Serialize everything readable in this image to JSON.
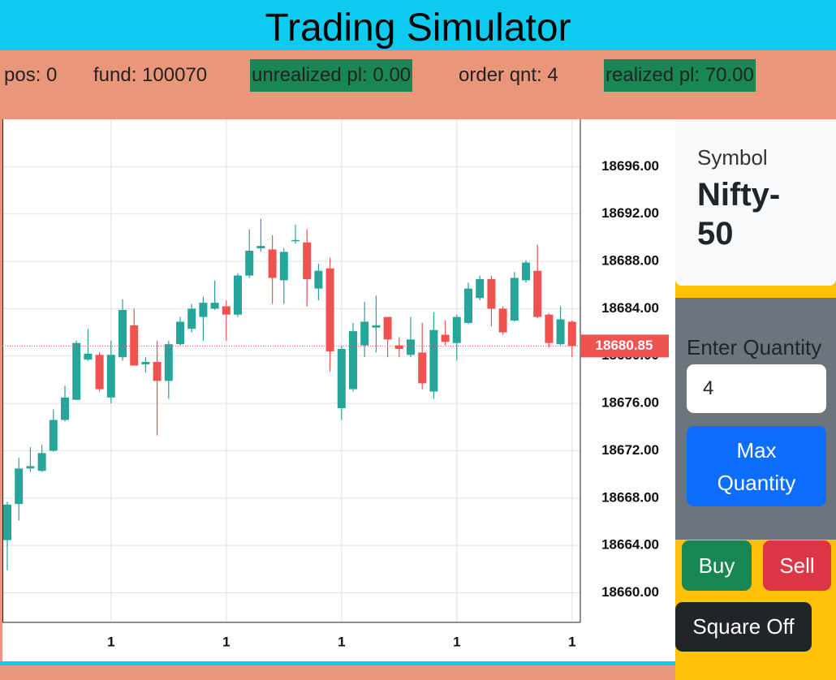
{
  "header": {
    "title": "Trading Simulator"
  },
  "stats": [
    {
      "text": "pos: 0",
      "highlight": false
    },
    {
      "text": "fund: 100070",
      "highlight": false
    },
    {
      "text": "unrealized pl: 0.00",
      "highlight": true
    },
    {
      "text": "order qnt: 4",
      "highlight": false
    },
    {
      "text": "realized pl: 70.00",
      "highlight": true
    }
  ],
  "symbol_card": {
    "label": "Symbol",
    "value": "Nifty-50"
  },
  "quantity": {
    "label": "Enter Quantity",
    "value": "4"
  },
  "buttons": {
    "max": "Max Quantity",
    "buy": "Buy",
    "sell": "Sell",
    "square_off": "Square Off"
  },
  "chart_data": {
    "type": "candlestick",
    "up_color": "#26a69a",
    "down_color": "#ef5350",
    "grid": true,
    "categories": [
      null,
      null,
      null,
      null,
      null,
      null,
      null,
      null,
      null,
      "1",
      null,
      null,
      null,
      null,
      null,
      null,
      null,
      null,
      null,
      "1",
      null,
      null,
      null,
      null,
      null,
      null,
      null,
      null,
      null,
      "1",
      null,
      null,
      null,
      null,
      null,
      null,
      null,
      null,
      null,
      "1",
      null,
      null,
      null,
      null,
      null,
      null,
      null,
      null,
      null,
      "1"
    ],
    "open": [
      18664.45,
      18667.5,
      18670.5,
      18670.3,
      18672.0,
      18674.6,
      18676.3,
      18679.7,
      18680.1,
      18676.5,
      18679.9,
      18682.6,
      18679.3,
      18679.5,
      18677.9,
      18681.0,
      18682.3,
      18683.3,
      18684.0,
      18684.2,
      18683.5,
      18686.8,
      18689.1,
      18689.0,
      18686.4,
      18689.7,
      18689.6,
      18685.7,
      18687.4,
      18675.6,
      18677.2,
      18680.9,
      18682.4,
      18683.3,
      18680.9,
      18680.1,
      18680.3,
      18677.0,
      18681.8,
      18681.1,
      18682.8,
      18684.9,
      18686.5,
      18684.0,
      18683.0,
      18686.4,
      18687.2,
      18683.5,
      18681.0,
      18682.9
    ],
    "high": [
      18667.7,
      18671.4,
      18672.3,
      18672.5,
      18675.5,
      18677.5,
      18681.3,
      18682.3,
      18680.3,
      18681.3,
      18684.8,
      18684.0,
      18679.9,
      18681.3,
      18681.3,
      18683.3,
      18684.4,
      18685.0,
      18686.4,
      18684.7,
      18687.0,
      18690.7,
      18691.6,
      18690.2,
      18689.1,
      18691.1,
      18690.7,
      18687.8,
      18688.3,
      18680.9,
      18682.8,
      18684.6,
      18685.1,
      18683.3,
      18681.6,
      18683.3,
      18682.8,
      18683.7,
      18683.0,
      18683.5,
      18686.2,
      18686.8,
      18686.8,
      18684.2,
      18687.1,
      18688.1,
      18689.4,
      18683.6,
      18684.2,
      18683.0
    ],
    "low": [
      18661.9,
      18666.1,
      18670.2,
      18670.2,
      18671.9,
      18674.5,
      18676.3,
      18679.6,
      18677.0,
      18676.0,
      18679.6,
      18679.2,
      18678.6,
      18673.3,
      18676.4,
      18680.9,
      18682.0,
      18681.3,
      18683.9,
      18681.3,
      18683.3,
      18686.6,
      18688.8,
      18684.4,
      18684.4,
      18689.5,
      18684.2,
      18684.7,
      18678.7,
      18674.6,
      18677.0,
      18679.9,
      18680.3,
      18679.9,
      18679.9,
      18679.9,
      18677.2,
      18676.4,
      18680.9,
      18679.6,
      18682.7,
      18684.7,
      18682.5,
      18681.8,
      18682.9,
      18686.2,
      18683.2,
      18680.7,
      18680.9,
      18679.9
    ],
    "close": [
      18667.45,
      18670.5,
      18670.7,
      18671.8,
      18674.6,
      18676.5,
      18681.1,
      18680.2,
      18677.2,
      18680.1,
      18683.9,
      18679.2,
      18679.5,
      18677.9,
      18681.0,
      18682.9,
      18684.0,
      18684.5,
      18684.5,
      18683.5,
      18686.8,
      18688.9,
      18689.3,
      18686.6,
      18688.8,
      18689.8,
      18686.5,
      18687.2,
      18680.4,
      18680.6,
      18682.1,
      18682.9,
      18682.6,
      18681.4,
      18680.6,
      18681.4,
      18677.7,
      18682.2,
      18681.2,
      18683.3,
      18685.7,
      18686.5,
      18684.0,
      18682.0,
      18686.6,
      18687.9,
      18683.3,
      18681.1,
      18683.1,
      18680.85
    ],
    "current_price": 18680.85,
    "ylim": [
      18657.5,
      18700
    ],
    "yticks": [
      {
        "value": 18660,
        "label": "18660.00"
      },
      {
        "value": 18664,
        "label": "18664.00"
      },
      {
        "value": 18668,
        "label": "18668.00"
      },
      {
        "value": 18672,
        "label": "18672.00"
      },
      {
        "value": 18676,
        "label": "18676.00"
      },
      {
        "value": 18680,
        "label": "18680.00"
      },
      {
        "value": 18684,
        "label": "18684.00"
      },
      {
        "value": 18688,
        "label": "18688.00"
      },
      {
        "value": 18692,
        "label": "18692.00"
      },
      {
        "value": 18696,
        "label": "18696.00"
      }
    ]
  }
}
